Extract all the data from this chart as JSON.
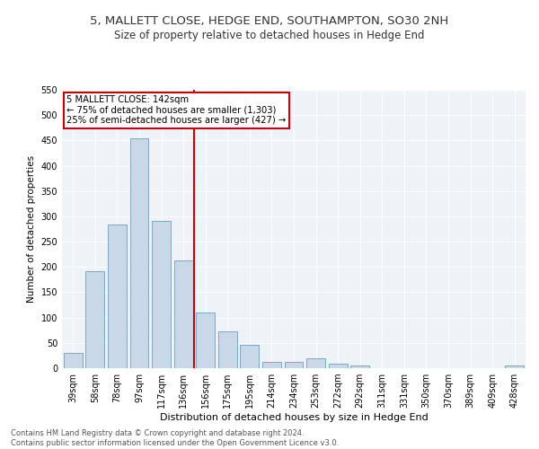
{
  "title": "5, MALLETT CLOSE, HEDGE END, SOUTHAMPTON, SO30 2NH",
  "subtitle": "Size of property relative to detached houses in Hedge End",
  "xlabel": "Distribution of detached houses by size in Hedge End",
  "ylabel": "Number of detached properties",
  "categories": [
    "39sqm",
    "58sqm",
    "78sqm",
    "97sqm",
    "117sqm",
    "136sqm",
    "156sqm",
    "175sqm",
    "195sqm",
    "214sqm",
    "234sqm",
    "253sqm",
    "272sqm",
    "292sqm",
    "311sqm",
    "331sqm",
    "350sqm",
    "370sqm",
    "389sqm",
    "409sqm",
    "428sqm"
  ],
  "values": [
    30,
    192,
    284,
    455,
    291,
    213,
    110,
    73,
    46,
    13,
    13,
    20,
    8,
    5,
    0,
    0,
    0,
    0,
    0,
    0,
    5
  ],
  "bar_color": "#c8d8e8",
  "bar_edge_color": "#7aaac8",
  "red_line_x": 5.5,
  "annotation_text": "5 MALLETT CLOSE: 142sqm\n← 75% of detached houses are smaller (1,303)\n25% of semi-detached houses are larger (427) →",
  "annotation_box_color": "#ffffff",
  "annotation_edge_color": "#cc0000",
  "red_line_color": "#cc0000",
  "ylim": [
    0,
    550
  ],
  "yticks": [
    0,
    50,
    100,
    150,
    200,
    250,
    300,
    350,
    400,
    450,
    500,
    550
  ],
  "background_color": "#eef3f8",
  "footer_line1": "Contains HM Land Registry data © Crown copyright and database right 2024.",
  "footer_line2": "Contains public sector information licensed under the Open Government Licence v3.0.",
  "title_fontsize": 9.5,
  "subtitle_fontsize": 8.5,
  "ylabel_fontsize": 7.5,
  "xlabel_fontsize": 8,
  "tick_fontsize": 7,
  "footer_fontsize": 6,
  "annotation_fontsize": 7.2
}
